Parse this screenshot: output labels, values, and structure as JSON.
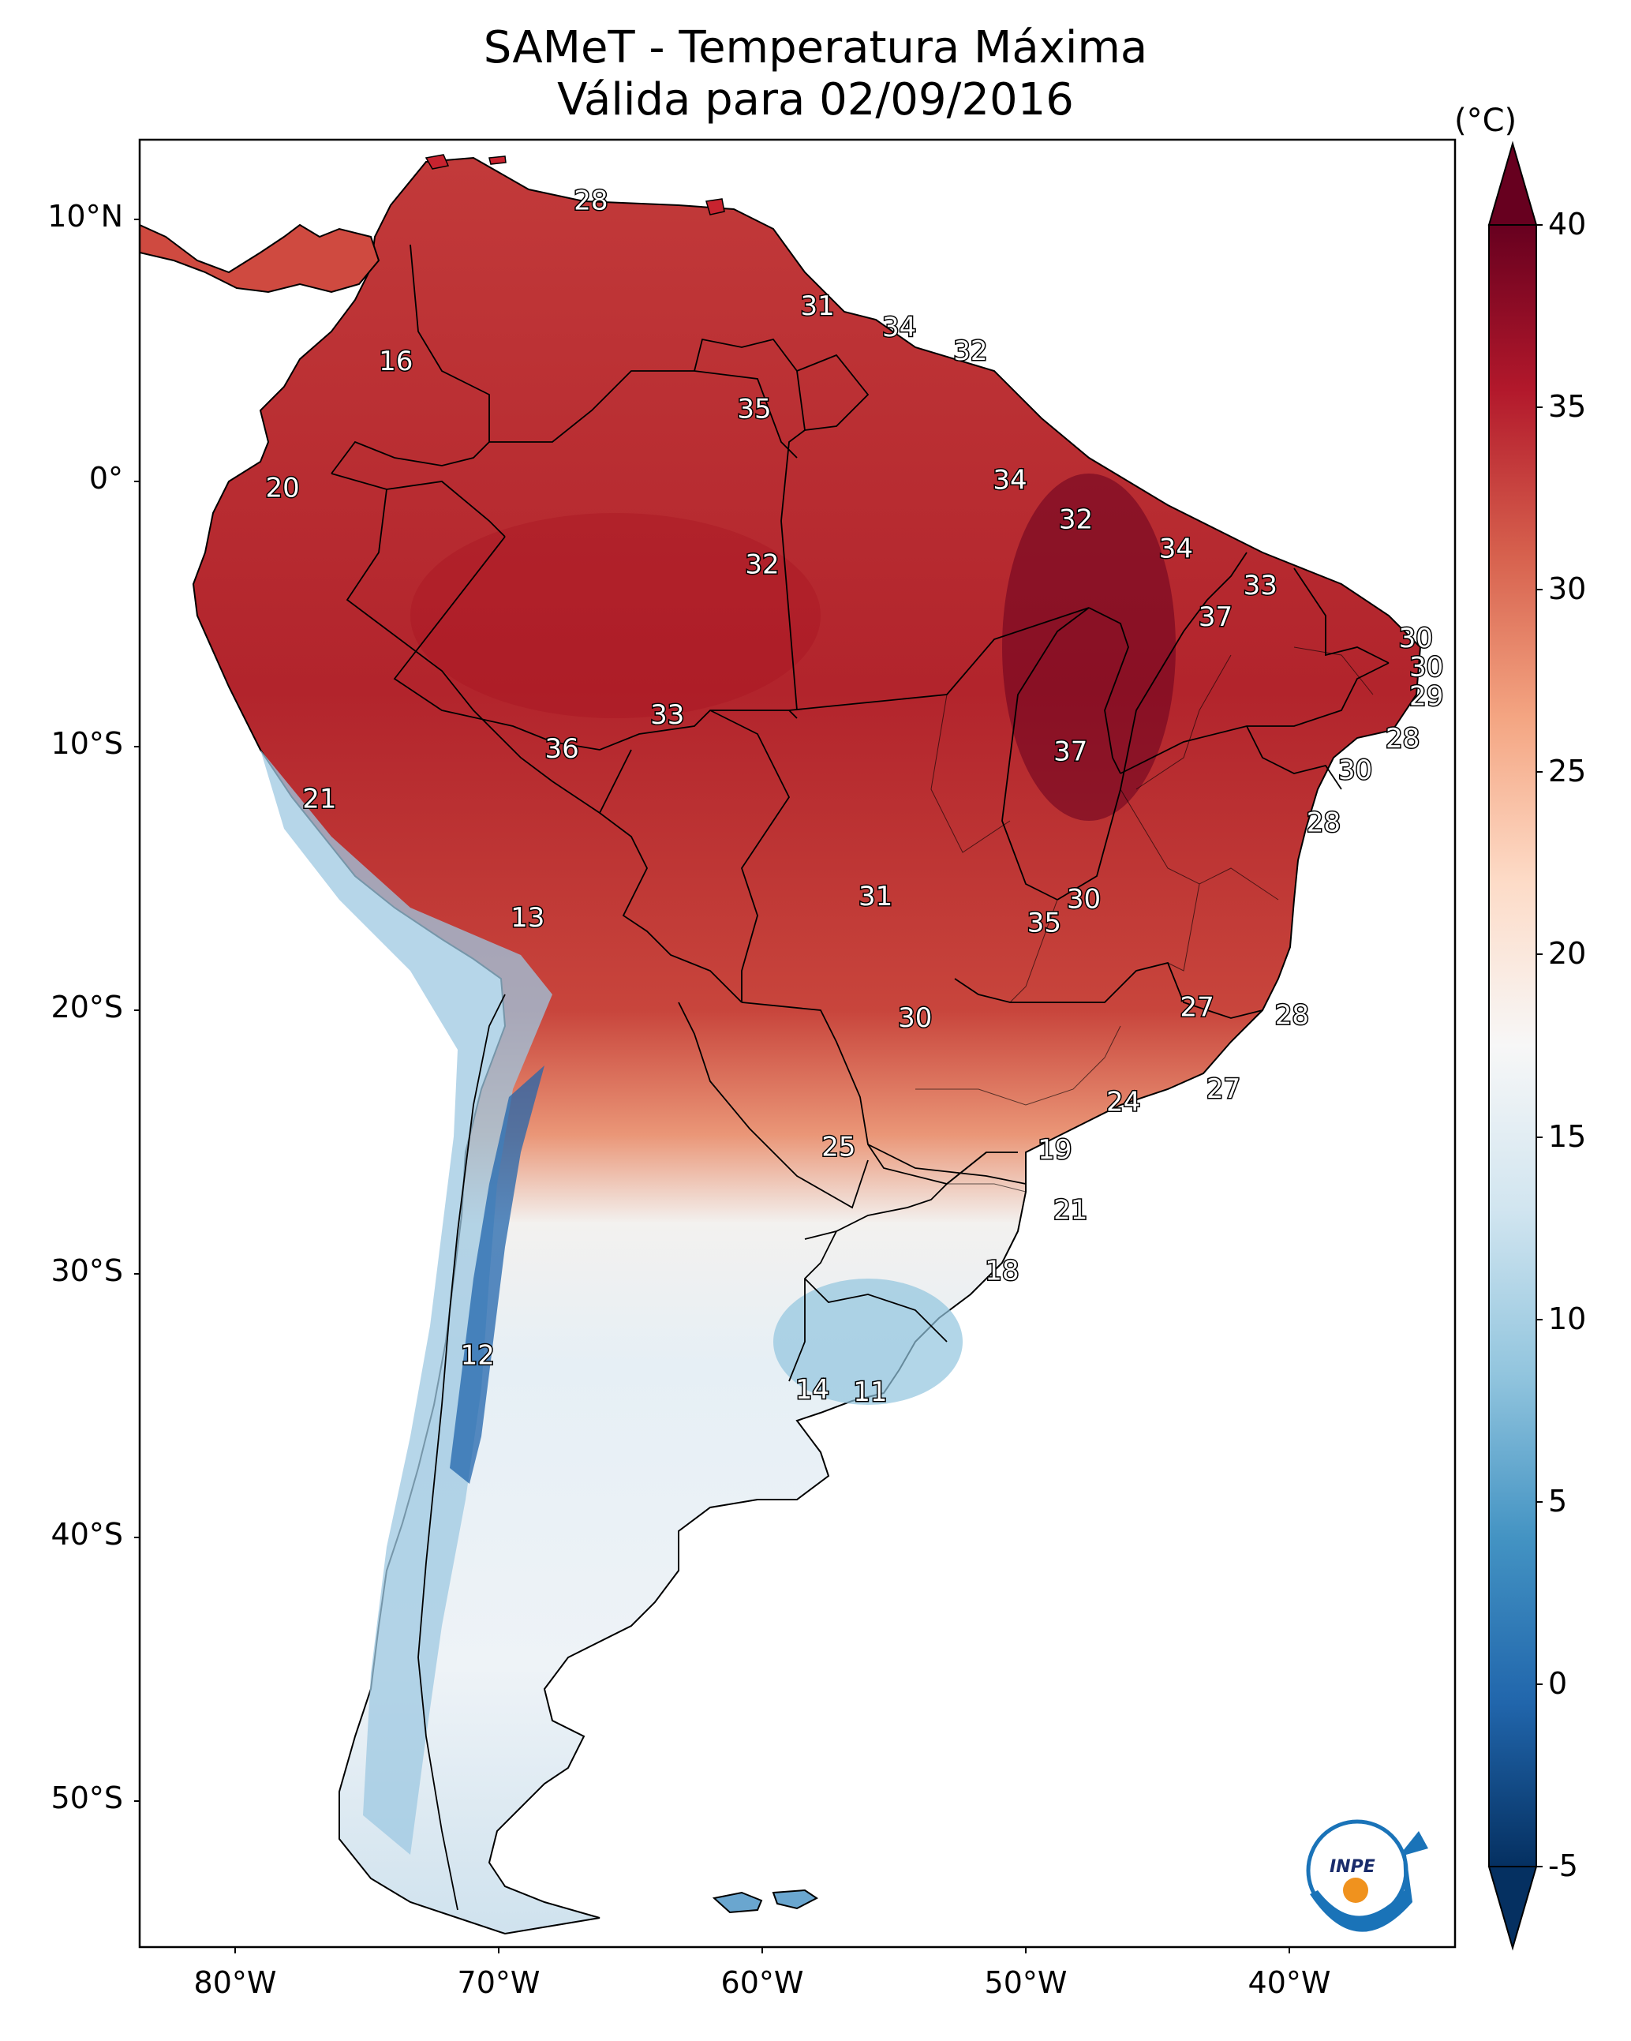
{
  "title": {
    "line1": "SAMeT - Temperatura Máxima",
    "line2": "Válida para 02/09/2016"
  },
  "colorbar": {
    "unit": "(°C)",
    "ticks": [
      "40",
      "35",
      "30",
      "25",
      "20",
      "15",
      "10",
      "5",
      "0",
      "-5"
    ],
    "range": [
      -5,
      40
    ],
    "colors": [
      "#053061",
      "#2166ac",
      "#4393c3",
      "#92c5de",
      "#d1e5f0",
      "#f7f7f7",
      "#fddbc7",
      "#f4a582",
      "#d6604d",
      "#b2182b",
      "#67001f"
    ]
  },
  "axes": {
    "lat_labels": [
      "10°N",
      "0°",
      "10°S",
      "20°S",
      "30°S",
      "40°S",
      "50°S"
    ],
    "lon_labels": [
      "80°W",
      "70°W",
      "60°W",
      "50°W",
      "40°W"
    ]
  },
  "labels": [
    {
      "v": "28",
      "lon": -66.5,
      "lat": 10.6
    },
    {
      "v": "31",
      "lon": -57.9,
      "lat": 6.6
    },
    {
      "v": "34",
      "lon": -54.8,
      "lat": 5.8
    },
    {
      "v": "32",
      "lon": -52.1,
      "lat": 4.9
    },
    {
      "v": "16",
      "lon": -73.9,
      "lat": 4.5
    },
    {
      "v": "35",
      "lon": -60.3,
      "lat": 2.7
    },
    {
      "v": "20",
      "lon": -78.2,
      "lat": -0.3
    },
    {
      "v": "34",
      "lon": -50.6,
      "lat": 0.0
    },
    {
      "v": "32",
      "lon": -48.1,
      "lat": -1.5
    },
    {
      "v": "34",
      "lon": -44.3,
      "lat": -2.6
    },
    {
      "v": "32",
      "lon": -60.0,
      "lat": -3.2
    },
    {
      "v": "33",
      "lon": -41.1,
      "lat": -4.0
    },
    {
      "v": "37",
      "lon": -42.8,
      "lat": -5.2
    },
    {
      "v": "30",
      "lon": -35.2,
      "lat": -6.0
    },
    {
      "v": "30",
      "lon": -34.8,
      "lat": -7.1
    },
    {
      "v": "29",
      "lon": -34.8,
      "lat": -8.2
    },
    {
      "v": "33",
      "lon": -63.6,
      "lat": -8.9
    },
    {
      "v": "28",
      "lon": -35.7,
      "lat": -9.8
    },
    {
      "v": "36",
      "lon": -67.6,
      "lat": -10.2
    },
    {
      "v": "37",
      "lon": -48.3,
      "lat": -10.3
    },
    {
      "v": "30",
      "lon": -37.5,
      "lat": -11.0
    },
    {
      "v": "21",
      "lon": -76.8,
      "lat": -12.1
    },
    {
      "v": "28",
      "lon": -38.7,
      "lat": -13.0
    },
    {
      "v": "31",
      "lon": -55.7,
      "lat": -15.8
    },
    {
      "v": "30",
      "lon": -47.8,
      "lat": -15.9
    },
    {
      "v": "35",
      "lon": -49.3,
      "lat": -16.8
    },
    {
      "v": "13",
      "lon": -68.9,
      "lat": -16.6
    },
    {
      "v": "27",
      "lon": -43.5,
      "lat": -20.0
    },
    {
      "v": "30",
      "lon": -54.2,
      "lat": -20.4
    },
    {
      "v": "28",
      "lon": -39.9,
      "lat": -20.3
    },
    {
      "v": "27",
      "lon": -42.5,
      "lat": -23.1
    },
    {
      "v": "24",
      "lon": -46.3,
      "lat": -23.6
    },
    {
      "v": "25",
      "lon": -57.1,
      "lat": -25.3
    },
    {
      "v": "19",
      "lon": -48.9,
      "lat": -25.4
    },
    {
      "v": "21",
      "lon": -48.3,
      "lat": -27.7
    },
    {
      "v": "18",
      "lon": -50.9,
      "lat": -30.0
    },
    {
      "v": "12",
      "lon": -70.8,
      "lat": -33.2
    },
    {
      "v": "14",
      "lon": -58.1,
      "lat": -34.5
    },
    {
      "v": "11",
      "lon": -55.9,
      "lat": -34.6
    }
  ],
  "logo": {
    "text": "INPE"
  }
}
